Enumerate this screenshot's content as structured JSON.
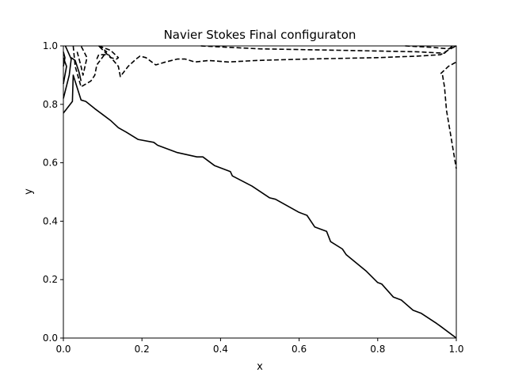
{
  "chart_data": {
    "type": "line",
    "title": "Navier Stokes Final configuraton",
    "xlabel": "x",
    "ylabel": "y",
    "xlim": [
      0,
      1
    ],
    "ylim": [
      0,
      1
    ],
    "grid": false,
    "xticks": [
      0.0,
      0.2,
      0.4,
      0.6,
      0.8,
      1.0
    ],
    "yticks": [
      0.0,
      0.2,
      0.4,
      0.6,
      0.8,
      1.0
    ],
    "xtick_labels": [
      "0.0",
      "0.2",
      "0.4",
      "0.6",
      "0.8",
      "1.0"
    ],
    "ytick_labels": [
      "0.0",
      "0.2",
      "0.4",
      "0.6",
      "0.8",
      "1.0"
    ],
    "contours": [
      {
        "style": "solid",
        "points": [
          [
            0.0,
            0.77
          ],
          [
            0.023,
            0.81
          ],
          [
            0.025,
            0.9
          ],
          [
            0.045,
            0.815
          ],
          [
            0.057,
            0.81
          ],
          [
            0.08,
            0.785
          ],
          [
            0.1,
            0.765
          ],
          [
            0.12,
            0.745
          ],
          [
            0.14,
            0.72
          ],
          [
            0.16,
            0.705
          ],
          [
            0.19,
            0.68
          ],
          [
            0.23,
            0.67
          ],
          [
            0.24,
            0.66
          ],
          [
            0.29,
            0.635
          ],
          [
            0.34,
            0.62
          ],
          [
            0.355,
            0.62
          ],
          [
            0.385,
            0.59
          ],
          [
            0.425,
            0.57
          ],
          [
            0.43,
            0.555
          ],
          [
            0.48,
            0.52
          ],
          [
            0.525,
            0.48
          ],
          [
            0.54,
            0.475
          ],
          [
            0.6,
            0.43
          ],
          [
            0.62,
            0.42
          ],
          [
            0.64,
            0.38
          ],
          [
            0.67,
            0.365
          ],
          [
            0.68,
            0.33
          ],
          [
            0.71,
            0.305
          ],
          [
            0.72,
            0.285
          ],
          [
            0.77,
            0.23
          ],
          [
            0.8,
            0.19
          ],
          [
            0.81,
            0.185
          ],
          [
            0.84,
            0.14
          ],
          [
            0.86,
            0.13
          ],
          [
            0.89,
            0.095
          ],
          [
            0.91,
            0.085
          ],
          [
            0.95,
            0.05
          ],
          [
            0.96,
            0.04
          ],
          [
            1.0,
            0.0
          ]
        ]
      },
      {
        "style": "solid",
        "points": [
          [
            0.0,
            0.82
          ],
          [
            0.015,
            0.9
          ],
          [
            0.02,
            0.955
          ],
          [
            0.005,
            1.0
          ]
        ]
      },
      {
        "style": "solid",
        "points": [
          [
            0.0,
            0.87
          ],
          [
            0.008,
            0.93
          ],
          [
            0.0,
            0.96
          ]
        ]
      },
      {
        "style": "solid",
        "points": [
          [
            0.0,
            0.93
          ],
          [
            0.004,
            0.96
          ],
          [
            0.0,
            0.98
          ]
        ]
      },
      {
        "style": "solid",
        "points": [
          [
            0.02,
            0.96
          ],
          [
            0.03,
            0.95
          ],
          [
            0.04,
            0.91
          ],
          [
            0.045,
            0.88
          ]
        ]
      },
      {
        "style": "dashed",
        "points": [
          [
            0.025,
            1.0
          ],
          [
            0.03,
            0.93
          ],
          [
            0.045,
            0.86
          ],
          [
            0.07,
            0.88
          ],
          [
            0.08,
            0.9
          ],
          [
            0.085,
            0.935
          ],
          [
            0.11,
            0.98
          ],
          [
            0.09,
            1.0
          ]
        ]
      },
      {
        "style": "dashed",
        "points": [
          [
            0.035,
            0.98
          ],
          [
            0.045,
            0.93
          ],
          [
            0.05,
            0.9
          ],
          [
            0.06,
            0.96
          ],
          [
            0.045,
            1.0
          ]
        ]
      },
      {
        "style": "dashed",
        "points": [
          [
            0.085,
            0.955
          ],
          [
            0.09,
            0.97
          ],
          [
            0.115,
            0.97
          ],
          [
            0.14,
            0.93
          ],
          [
            0.145,
            0.895
          ],
          [
            0.165,
            0.93
          ],
          [
            0.185,
            0.955
          ],
          [
            0.195,
            0.965
          ],
          [
            0.21,
            0.96
          ],
          [
            0.225,
            0.945
          ],
          [
            0.235,
            0.935
          ],
          [
            0.26,
            0.945
          ],
          [
            0.29,
            0.955
          ],
          [
            0.31,
            0.955
          ],
          [
            0.335,
            0.945
          ],
          [
            0.37,
            0.95
          ],
          [
            0.42,
            0.945
          ],
          [
            0.49,
            0.95
          ],
          [
            0.62,
            0.955
          ],
          [
            0.8,
            0.96
          ],
          [
            0.9,
            0.965
          ],
          [
            0.96,
            0.97
          ],
          [
            0.985,
            0.99
          ],
          [
            1.0,
            1.0
          ]
        ]
      },
      {
        "style": "dashed",
        "points": [
          [
            0.09,
            1.0
          ],
          [
            0.1,
            0.995
          ],
          [
            0.12,
            0.985
          ],
          [
            0.14,
            0.96
          ],
          [
            0.135,
            0.955
          ],
          [
            0.12,
            0.96
          ],
          [
            0.09,
            1.0
          ]
        ]
      },
      {
        "style": "dashed",
        "points": [
          [
            0.35,
            1.0
          ],
          [
            0.5,
            0.99
          ],
          [
            0.7,
            0.985
          ],
          [
            0.9,
            0.98
          ],
          [
            0.97,
            0.975
          ],
          [
            0.99,
            1.0
          ]
        ]
      },
      {
        "style": "dashed",
        "points": [
          [
            0.87,
            1.0
          ],
          [
            0.94,
            0.995
          ],
          [
            0.98,
            0.99
          ],
          [
            1.0,
            1.0
          ]
        ]
      },
      {
        "style": "dashed",
        "points": [
          [
            0.96,
            0.905
          ],
          [
            0.98,
            0.93
          ],
          [
            1.0,
            0.945
          ]
        ]
      },
      {
        "style": "dashed",
        "points": [
          [
            0.965,
            0.9
          ],
          [
            0.97,
            0.86
          ],
          [
            0.975,
            0.78
          ],
          [
            0.985,
            0.7
          ],
          [
            0.995,
            0.62
          ],
          [
            1.0,
            0.58
          ]
        ]
      }
    ]
  }
}
